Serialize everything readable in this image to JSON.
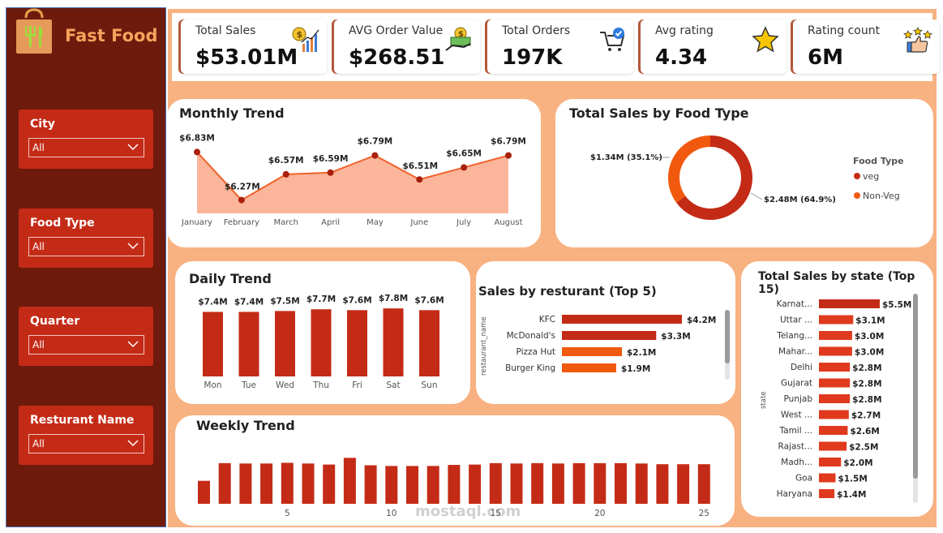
{
  "brand": {
    "name": "Fast Food"
  },
  "filters": [
    {
      "label": "City",
      "value": "All"
    },
    {
      "label": "Food Type",
      "value": "All"
    },
    {
      "label": "Quarter",
      "value": "All"
    },
    {
      "label": "Resturant Name",
      "value": "All"
    }
  ],
  "kpis": [
    {
      "title": "Total Sales",
      "value": "$53.01M",
      "icon": "sales-chart-icon"
    },
    {
      "title": "AVG Order Value",
      "value": "$268.51",
      "icon": "money-hand-icon"
    },
    {
      "title": "Total Orders",
      "value": "197K",
      "icon": "cart-check-icon"
    },
    {
      "title": "Avg rating",
      "value": "4.34",
      "icon": "star-icon"
    },
    {
      "title": "Rating count",
      "value": "6M",
      "icon": "thumbs-up-stars-icon"
    }
  ],
  "colors": {
    "dark_red": "#c42b17",
    "orange": "#f15a0e",
    "bg_peach": "#f8b180",
    "sidebar": "#6e1a0c"
  },
  "chart_data": [
    {
      "type": "area",
      "title": "Monthly Trend",
      "categories": [
        "January",
        "February",
        "March",
        "April",
        "May",
        "June",
        "July",
        "August"
      ],
      "values": [
        6.83,
        6.27,
        6.57,
        6.59,
        6.79,
        6.51,
        6.65,
        6.79
      ],
      "labels": [
        "$6.83M",
        "$6.27M",
        "$6.57M",
        "$6.59M",
        "$6.79M",
        "$6.51M",
        "$6.65M",
        "$6.79M"
      ]
    },
    {
      "type": "pie",
      "title": "Total Sales by Food Type",
      "legend_title": "Food Type",
      "slices": [
        {
          "name": "veg",
          "value": 2.48,
          "label": "$2.48M (64.9%)",
          "color": "#c42b17"
        },
        {
          "name": "Non-Veg",
          "value": 1.34,
          "label": "$1.34M (35.1%)",
          "color": "#f15a0e"
        }
      ]
    },
    {
      "type": "bar",
      "title": "Daily Trend",
      "categories": [
        "Mon",
        "Tue",
        "Wed",
        "Thu",
        "Fri",
        "Sat",
        "Sun"
      ],
      "values": [
        7.4,
        7.4,
        7.5,
        7.7,
        7.6,
        7.8,
        7.6
      ],
      "labels": [
        "$7.4M",
        "$7.4M",
        "$7.5M",
        "$7.7M",
        "$7.6M",
        "$7.8M",
        "$7.6M"
      ]
    },
    {
      "type": "bar",
      "title": "Sales by resturant (Top 5)",
      "ylabel": "restaurant_name",
      "categories": [
        "KFC",
        "McDonald's",
        "Pizza Hut",
        "Burger King"
      ],
      "values": [
        4.2,
        3.3,
        2.1,
        1.9
      ],
      "labels": [
        "$4.2M",
        "$3.3M",
        "$2.1M",
        "$1.9M"
      ],
      "colors": [
        "#c42b17",
        "#c42b17",
        "#f15a0e",
        "#f15a0e"
      ]
    },
    {
      "type": "bar",
      "title": "Total Sales by state (Top 15)",
      "ylabel": "state",
      "categories": [
        "Karnat...",
        "Uttar ...",
        "Telang...",
        "Mahar...",
        "Delhi",
        "Gujarat",
        "Punjab",
        "West ...",
        "Tamil ...",
        "Rajast...",
        "Madh...",
        "Goa",
        "Haryana"
      ],
      "values": [
        5.5,
        3.1,
        3.0,
        3.0,
        2.8,
        2.8,
        2.8,
        2.7,
        2.6,
        2.5,
        2.0,
        1.5,
        1.4
      ],
      "labels": [
        "$5.5M",
        "$3.1M",
        "$3.0M",
        "$3.0M",
        "$2.8M",
        "$2.8M",
        "$2.8M",
        "$2.7M",
        "$2.6M",
        "$2.5M",
        "$2.0M",
        "$1.5M",
        "$1.4M"
      ]
    },
    {
      "type": "bar",
      "title": "Weekly Trend",
      "x_ticks": [
        "5",
        "10",
        "15",
        "20",
        "25"
      ],
      "values": [
        1.3,
        2.3,
        2.28,
        2.28,
        2.32,
        2.28,
        2.22,
        2.6,
        2.18,
        2.14,
        2.14,
        2.14,
        2.2,
        2.22,
        2.3,
        2.28,
        2.3,
        2.28,
        2.3,
        2.3,
        2.3,
        2.28,
        2.24,
        2.24,
        2.24
      ],
      "ylim": [
        0,
        2.8
      ]
    }
  ],
  "watermark": {
    "text": "mostaql.com"
  }
}
